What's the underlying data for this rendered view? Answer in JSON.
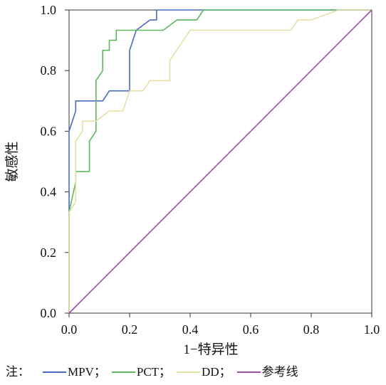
{
  "chart_data": {
    "type": "line",
    "xlabel": "1−特异性",
    "ylabel": "敏感性",
    "xlim": [
      0,
      1
    ],
    "ylim": [
      0,
      1
    ],
    "xticks": [
      "0.0",
      "0.2",
      "0.4",
      "0.6",
      "0.8",
      "1.0"
    ],
    "yticks": [
      "0.0",
      "0.2",
      "0.4",
      "0.6",
      "0.8",
      "1.0"
    ],
    "grid": false,
    "legend": {
      "position": "bottom",
      "prefix": "注：",
      "separator": "；"
    },
    "series": [
      {
        "name": "MPV",
        "color": "#4a6bbf",
        "x": [
          0,
          0,
          0.022,
          0.022,
          0.111,
          0.133,
          0.2,
          0.2,
          0.222,
          0.267,
          0.289,
          0.289,
          1
        ],
        "y": [
          0,
          0.6,
          0.667,
          0.7,
          0.7,
          0.733,
          0.733,
          0.867,
          0.933,
          0.967,
          0.967,
          1,
          1
        ]
      },
      {
        "name": "PCT",
        "color": "#5cb85c",
        "x": [
          0,
          0,
          0.022,
          0.022,
          0.067,
          0.067,
          0.089,
          0.089,
          0.111,
          0.111,
          0.133,
          0.133,
          0.156,
          0.156,
          0.311,
          0.356,
          0.422,
          0.444,
          1
        ],
        "y": [
          0,
          0.333,
          0.433,
          0.467,
          0.467,
          0.567,
          0.6,
          0.767,
          0.8,
          0.867,
          0.867,
          0.9,
          0.9,
          0.933,
          0.933,
          0.967,
          0.967,
          1,
          1
        ]
      },
      {
        "name": "DD",
        "color": "#e6dfa3",
        "x": [
          0,
          0,
          0.022,
          0.022,
          0.044,
          0.044,
          0.089,
          0.133,
          0.178,
          0.2,
          0.244,
          0.267,
          0.333,
          0.333,
          0.4,
          0.733,
          0.756,
          0.8,
          0.889,
          1
        ],
        "y": [
          0,
          0.333,
          0.367,
          0.567,
          0.6,
          0.633,
          0.633,
          0.667,
          0.667,
          0.733,
          0.733,
          0.767,
          0.767,
          0.833,
          0.933,
          0.933,
          0.967,
          0.967,
          1,
          1
        ]
      },
      {
        "name": "参考线",
        "color": "#9b4fa5",
        "x": [
          0,
          1
        ],
        "y": [
          0,
          1
        ]
      }
    ]
  }
}
